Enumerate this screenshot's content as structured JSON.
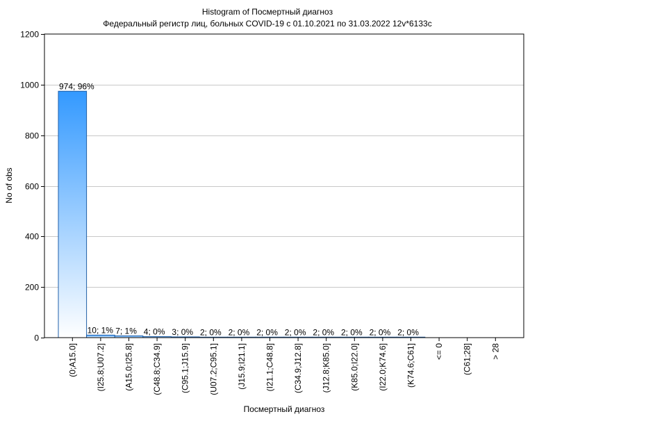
{
  "chart_data": {
    "type": "bar",
    "title": "Histogram of Посмертный диагноз",
    "subtitle": "Федеральный регистр лиц, больных COVID-19 с 01.10.2021 по 31.03.2022 12v*6133c",
    "xlabel": "Посмертный диагноз",
    "ylabel": "No of obs",
    "ylim": [
      0,
      1200
    ],
    "yticks": [
      0,
      200,
      400,
      600,
      800,
      1000,
      1200
    ],
    "grid": true,
    "categories": [
      "(0;A15.0]",
      "(I25.8;U07.2]",
      "(A15.0;I25.8]",
      "(C48.8;C34.9]",
      "(C95.1;J15.9]",
      "(U07.2;C95.1]",
      "(J15.9;I21.1]",
      "(I21.1;C48.8]",
      "(C34.9;J12.8]",
      "(J12.8;K85.0]",
      "(K85.0;I22.0]",
      "(I22.0;K74.6]",
      "(K74.6;C61]",
      "<= 0",
      "(C61;28]",
      "> 28"
    ],
    "values": [
      974,
      10,
      7,
      4,
      3,
      2,
      2,
      2,
      2,
      2,
      2,
      2,
      2,
      0,
      0,
      0
    ],
    "data_labels": [
      "974; 96%",
      "10; 1%",
      "7; 1%",
      "4; 0%",
      "3; 0%",
      "2; 0%",
      "2; 0%",
      "2; 0%",
      "2; 0%",
      "2; 0%",
      "2; 0%",
      "2; 0%",
      "2; 0%",
      "",
      "",
      ""
    ],
    "colors": {
      "bar_top": "#3399ff",
      "bar_bottom": "#ffffff",
      "bar_stroke": "#1f5fa8",
      "grid": "#c8c8c8",
      "axis": "#000000"
    }
  }
}
